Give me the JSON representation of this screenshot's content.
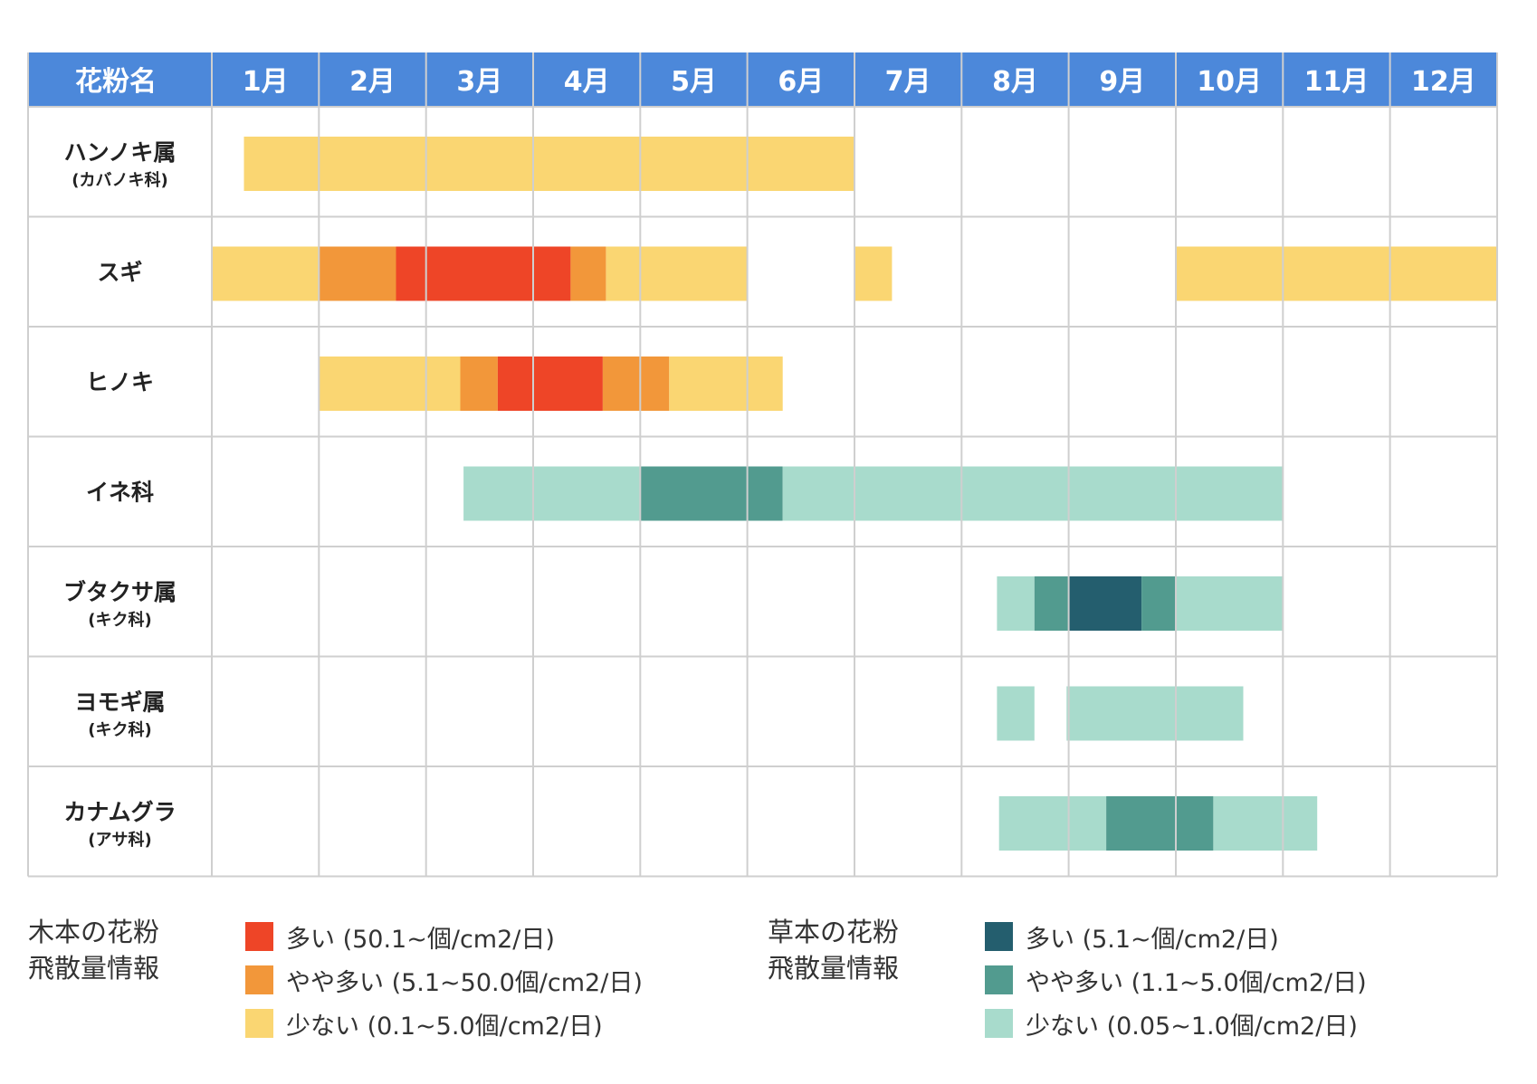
{
  "colors": {
    "header_bg": "#4c88da",
    "grid": "#cfcfcf",
    "tree_high": "#ee4527",
    "tree_mid": "#f2973a",
    "tree_low": "#fad672",
    "grass_high": "#245e6e",
    "grass_mid": "#529b8f",
    "grass_low": "#a8dbcc"
  },
  "chart_data": {
    "type": "table",
    "header": {
      "name_column": "花粉名",
      "months": [
        "1月",
        "2月",
        "3月",
        "4月",
        "5月",
        "6月",
        "7月",
        "8月",
        "9月",
        "10月",
        "11月",
        "12月"
      ]
    },
    "x_unit": "month",
    "xlim": [
      1,
      13
    ],
    "rows": [
      {
        "name": "ハンノキ属",
        "sub": "(カバノキ科)",
        "kind": "tree",
        "segments": [
          {
            "start": 1.3,
            "end": 7.0,
            "level": "low"
          }
        ]
      },
      {
        "name": "スギ",
        "sub": "",
        "kind": "tree",
        "segments": [
          {
            "start": 1.0,
            "end": 2.0,
            "level": "low"
          },
          {
            "start": 2.0,
            "end": 2.72,
            "level": "mid"
          },
          {
            "start": 2.72,
            "end": 4.35,
            "level": "high"
          },
          {
            "start": 4.35,
            "end": 4.68,
            "level": "mid"
          },
          {
            "start": 4.68,
            "end": 6.0,
            "level": "low"
          },
          {
            "start": 7.0,
            "end": 7.35,
            "level": "low"
          },
          {
            "start": 10.0,
            "end": 13.0,
            "level": "low"
          }
        ]
      },
      {
        "name": "ヒノキ",
        "sub": "",
        "kind": "tree",
        "segments": [
          {
            "start": 2.0,
            "end": 3.32,
            "level": "low"
          },
          {
            "start": 3.32,
            "end": 3.67,
            "level": "mid"
          },
          {
            "start": 3.67,
            "end": 4.65,
            "level": "high"
          },
          {
            "start": 4.65,
            "end": 5.27,
            "level": "mid"
          },
          {
            "start": 5.27,
            "end": 6.33,
            "level": "low"
          }
        ]
      },
      {
        "name": "イネ科",
        "sub": "",
        "kind": "grass",
        "segments": [
          {
            "start": 3.35,
            "end": 5.0,
            "level": "low"
          },
          {
            "start": 5.0,
            "end": 6.33,
            "level": "mid"
          },
          {
            "start": 6.33,
            "end": 11.0,
            "level": "low"
          }
        ]
      },
      {
        "name": "ブタクサ属",
        "sub": "(キク科)",
        "kind": "grass",
        "segments": [
          {
            "start": 8.33,
            "end": 8.68,
            "level": "low"
          },
          {
            "start": 8.68,
            "end": 9.0,
            "level": "mid"
          },
          {
            "start": 9.0,
            "end": 9.68,
            "level": "high"
          },
          {
            "start": 9.68,
            "end": 10.0,
            "level": "mid"
          },
          {
            "start": 10.0,
            "end": 11.0,
            "level": "low"
          }
        ]
      },
      {
        "name": "ヨモギ属",
        "sub": "(キク科)",
        "kind": "grass",
        "segments": [
          {
            "start": 8.33,
            "end": 8.68,
            "level": "low"
          },
          {
            "start": 8.98,
            "end": 10.63,
            "level": "low"
          }
        ]
      },
      {
        "name": "カナムグラ",
        "sub": "(アサ科)",
        "kind": "grass",
        "segments": [
          {
            "start": 8.35,
            "end": 9.35,
            "level": "low"
          },
          {
            "start": 9.35,
            "end": 10.35,
            "level": "mid"
          },
          {
            "start": 10.35,
            "end": 11.32,
            "level": "low"
          }
        ]
      }
    ]
  },
  "legend": {
    "tree": {
      "title_lines": [
        "木本の花粉",
        "飛散量情報"
      ],
      "items": [
        {
          "level": "high",
          "label": "多い (50.1~個/cm2/日)"
        },
        {
          "level": "mid",
          "label": "やや多い (5.1~50.0個/cm2/日)"
        },
        {
          "level": "low",
          "label": "少ない (0.1~5.0個/cm2/日)"
        }
      ]
    },
    "grass": {
      "title_lines": [
        "草本の花粉",
        "飛散量情報"
      ],
      "items": [
        {
          "level": "high",
          "label": "多い (5.1~個/cm2/日)"
        },
        {
          "level": "mid",
          "label": "やや多い (1.1~5.0個/cm2/日)"
        },
        {
          "level": "low",
          "label": "少ない (0.05~1.0個/cm2/日)"
        }
      ]
    }
  }
}
